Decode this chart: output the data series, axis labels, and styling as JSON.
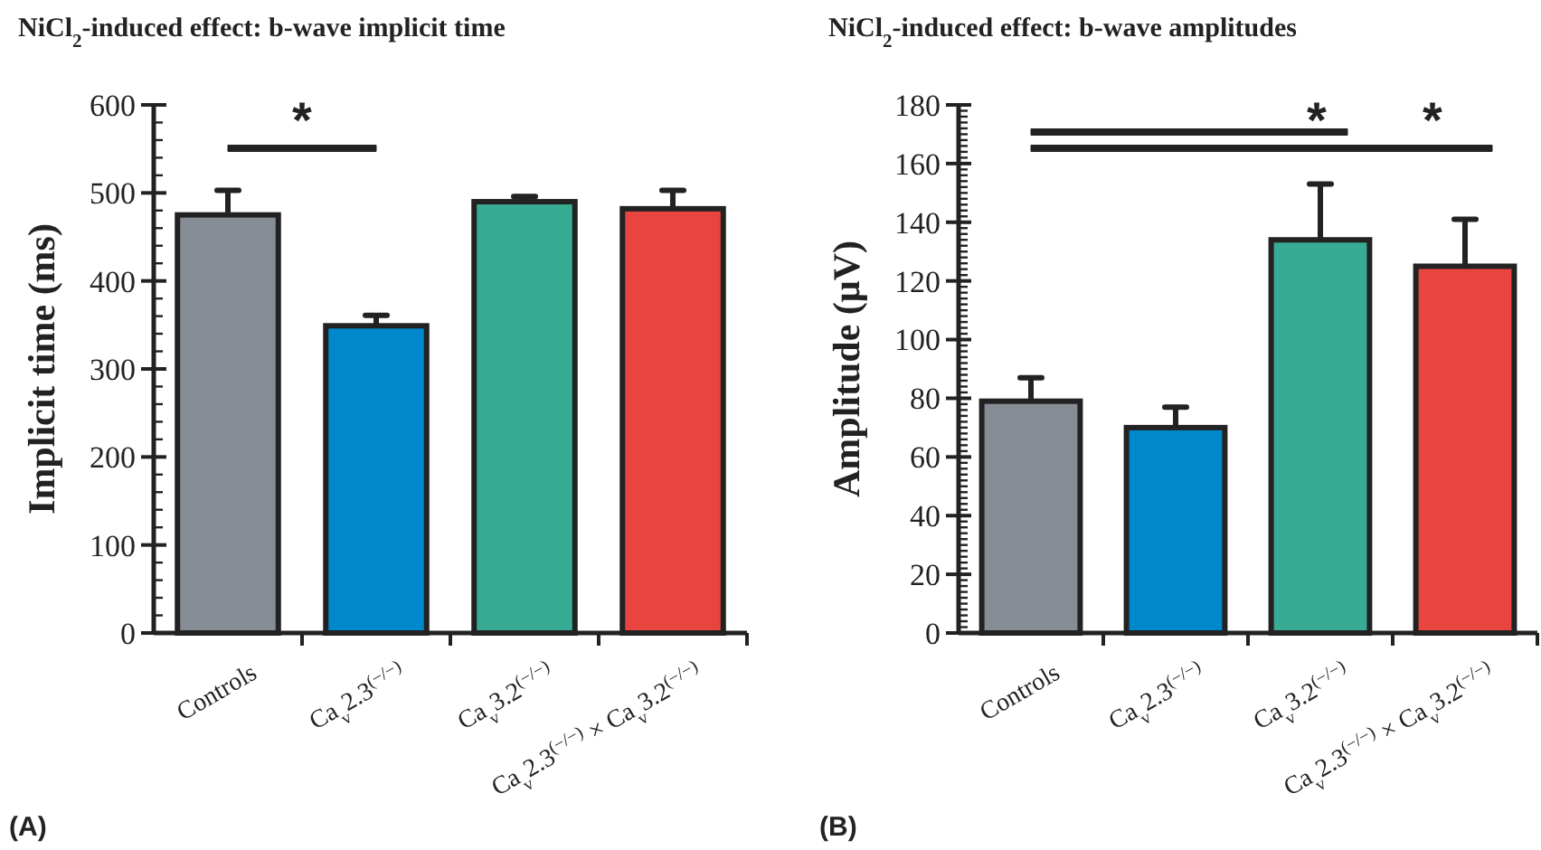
{
  "chart_data": [
    {
      "type": "bar",
      "title": "NiCl$_{2}$-induced effect: b-wave implicit time",
      "ylabel": "Implicit time (ms)",
      "categories": [
        "Controls",
        "Ca$_{v}$2.3$^{(−/−)}$",
        "Ca$_{v}$3.2$^{(−/−)}$",
        "Ca$_{v}$2.3$^{(−/−)}$ × Ca$_{v}$3.2$^{(−/−)}$"
      ],
      "values": [
        475,
        349,
        490,
        482
      ],
      "colors": [
        "#868d94",
        "#0088cc",
        "#38ab94",
        "#e84440"
      ],
      "errors": [
        [
          475,
          503
        ],
        [
          349,
          361
        ],
        [
          490,
          496
        ],
        [
          482,
          503
        ]
      ],
      "ylim": [
        0,
        600
      ],
      "yticks": [
        0,
        {
          "value": 20,
          "label": null
        },
        {
          "value": 40,
          "label": null
        },
        {
          "value": 60,
          "label": null
        },
        {
          "value": 80,
          "label": null
        },
        100,
        {
          "value": 120,
          "label": null
        },
        {
          "value": 140,
          "label": null
        },
        {
          "value": 160,
          "label": null
        },
        {
          "value": 180,
          "label": null
        },
        200,
        {
          "value": 220,
          "label": null
        },
        {
          "value": 240,
          "label": null
        },
        {
          "value": 260,
          "label": null
        },
        {
          "value": 280,
          "label": null
        },
        300,
        {
          "value": 320,
          "label": null
        },
        {
          "value": 340,
          "label": null
        },
        {
          "value": 360,
          "label": null
        },
        {
          "value": 380,
          "label": null
        },
        400,
        {
          "value": 420,
          "label": null
        },
        {
          "value": 440,
          "label": null
        },
        {
          "value": 460,
          "label": null
        },
        {
          "value": 480,
          "label": null
        },
        500,
        {
          "value": 520,
          "label": null
        },
        {
          "value": 540,
          "label": null
        },
        {
          "value": 560,
          "label": null
        },
        {
          "value": 580,
          "label": null
        },
        600
      ],
      "annotations": [
        "*",
        "(A)"
      ]
    },
    {
      "type": "bar",
      "title": "NiCl$_{2}$-induced effect: b-wave amplitudes",
      "ylabel": "Amplitude (μV)",
      "categories": [
        "Controls",
        "Ca$_{v}$2.3$^{(−/−)}$",
        "Ca$_{v}$3.2$^{(−/−)}$",
        "Ca$_{v}$2.3$^{(−/−)}$ × Ca$_{v}$3.2$^{(−/−)}$"
      ],
      "values": [
        79,
        70,
        134,
        125
      ],
      "colors": [
        "#868d94",
        "#0088cc",
        "#38ab94",
        "#e84440"
      ],
      "errors": [
        [
          79,
          87
        ],
        [
          70,
          77
        ],
        [
          134,
          153
        ],
        [
          125,
          141
        ]
      ],
      "ylim": [
        0,
        180
      ],
      "yticks": [
        0,
        20,
        40,
        60,
        80,
        100,
        120,
        140,
        160,
        180
      ],
      "annotations": [
        "*",
        "*",
        "(B)"
      ]
    }
  ]
}
